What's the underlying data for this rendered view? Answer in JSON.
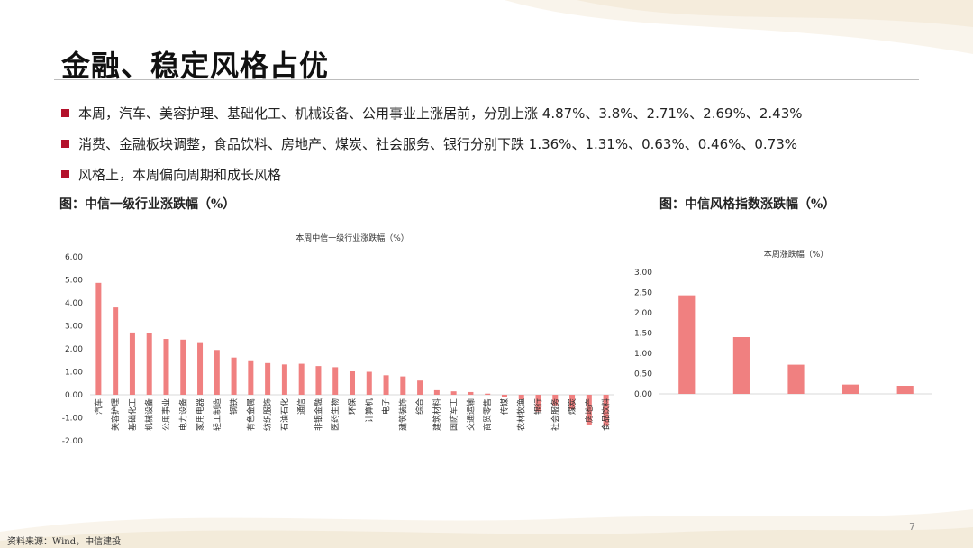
{
  "slide": {
    "title": "金融、稳定风格占优",
    "page_number": "7",
    "source": "资料来源：Wind，中信建投"
  },
  "bullets": [
    "本周，汽车、美容护理、基础化工、机械设备、公用事业上涨居前，分别上涨 4.87%、3.8%、2.71%、2.69%、2.43%",
    "消费、金融板块调整，食品饮料、房地产、煤炭、社会服务、银行分别下跌 1.36%、1.31%、0.63%、0.46%、0.73%",
    "风格上，本周偏向周期和成长风格"
  ],
  "figures": {
    "left_caption": "图：中信一级行业涨跌幅（%）",
    "right_caption": "图：中信风格指数涨跌幅（%）"
  },
  "colors": {
    "bar": "#f08080",
    "bullet": "#b3112b",
    "axis": "#d9d9d9"
  },
  "chart_data": [
    {
      "type": "bar",
      "title": "本周中信一级行业涨跌幅（%）",
      "categories": [
        "汽车",
        "美容护理",
        "基础化工",
        "机械设备",
        "公用事业",
        "电力设备",
        "家用电器",
        "轻工制造",
        "钢铁",
        "有色金属",
        "纺织服饰",
        "石油石化",
        "通信",
        "非银金融",
        "医药生物",
        "环保",
        "计算机",
        "电子",
        "建筑装饰",
        "综合",
        "建筑材料",
        "国防军工",
        "交通运输",
        "商贸零售",
        "传媒",
        "农林牧渔",
        "银行",
        "社会服务",
        "煤炭",
        "房地产",
        "食品饮料"
      ],
      "values": [
        4.87,
        3.8,
        2.71,
        2.69,
        2.43,
        2.4,
        2.25,
        1.95,
        1.62,
        1.5,
        1.38,
        1.32,
        1.35,
        1.25,
        1.2,
        1.02,
        1.0,
        0.85,
        0.8,
        0.62,
        0.2,
        0.15,
        0.12,
        0.05,
        -0.1,
        -0.2,
        -0.73,
        -0.46,
        -0.63,
        -1.31,
        -1.36
      ],
      "ylim": [
        -2,
        6
      ],
      "yticks": [
        "6.00",
        "5.00",
        "4.00",
        "3.00",
        "2.00",
        "1.00",
        "0.00",
        "-1.00",
        "-2.00"
      ],
      "grid": false
    },
    {
      "type": "bar",
      "title": "本周涨跌幅（%）",
      "categories": [
        "",
        "",
        "",
        "",
        ""
      ],
      "values": [
        2.43,
        1.4,
        0.72,
        0.23,
        0.2
      ],
      "ylim": [
        0,
        3
      ],
      "yticks": [
        "3.00",
        "2.50",
        "2.00",
        "1.50",
        "1.00",
        "0.50",
        "0.00"
      ],
      "grid": false
    }
  ]
}
